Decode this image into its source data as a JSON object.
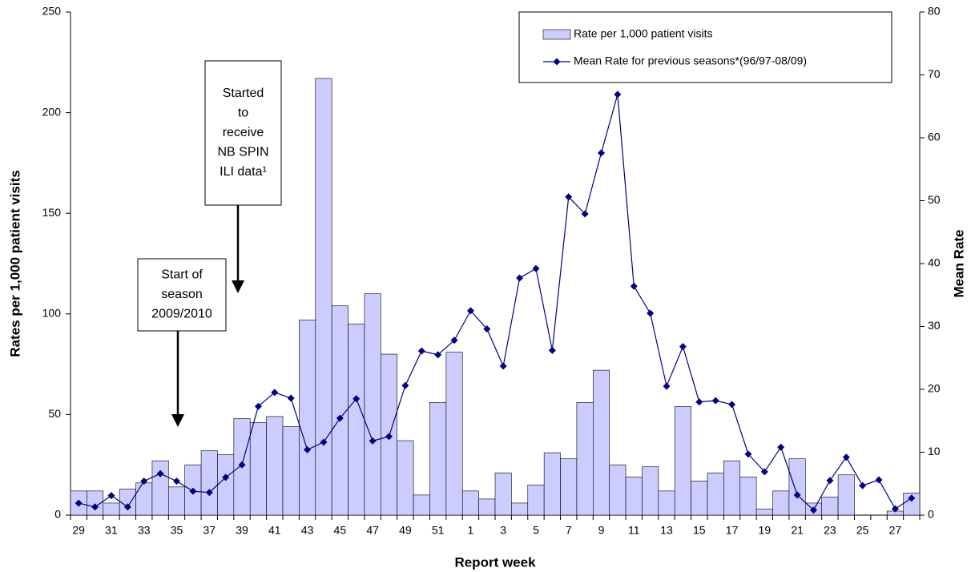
{
  "chart_data": {
    "type": "bar",
    "x_label": "Report week",
    "y_label": "Rates per 1,000 patient visits",
    "y2_label": "Mean Rate",
    "categories": [
      "29",
      null,
      "31",
      null,
      "33",
      null,
      "35",
      null,
      "37",
      null,
      "39",
      null,
      "41",
      null,
      "43",
      null,
      "45",
      null,
      "47",
      null,
      "49",
      null,
      "51",
      null,
      "1",
      null,
      "3",
      null,
      "5",
      null,
      "7",
      null,
      "9",
      null,
      "11",
      null,
      "13",
      null,
      "15",
      null,
      "17",
      null,
      "19",
      null,
      "21",
      null,
      "23",
      null,
      "25",
      null,
      "27",
      null
    ],
    "series": [
      {
        "name": "Rate per 1,000  patient visits",
        "type": "bar",
        "color": "#ccccff",
        "values": [
          12,
          12,
          6,
          13,
          16,
          27,
          14,
          25,
          32,
          30,
          48,
          46,
          49,
          44,
          97,
          217,
          104,
          95,
          110,
          80,
          37,
          10,
          56,
          81,
          12,
          8,
          21,
          6,
          15,
          31,
          28,
          56,
          72,
          25,
          19,
          24,
          12,
          54,
          17,
          21,
          27,
          19,
          3,
          12,
          28,
          6,
          9,
          20,
          0,
          0,
          2,
          11
        ]
      },
      {
        "name": "Mean Rate  for previous seasons*(96/97-08/09)",
        "type": "line",
        "axis": "y2",
        "color": "#000080",
        "values": [
          1.9,
          1.3,
          3.1,
          1.3,
          5.4,
          6.6,
          5.4,
          3.8,
          3.6,
          6.0,
          8.0,
          17.3,
          19.5,
          18.6,
          10.4,
          11.6,
          15.4,
          18.5,
          11.8,
          12.5,
          20.6,
          26.1,
          25.5,
          27.8,
          32.5,
          29.6,
          23.7,
          37.7,
          39.2,
          26.2,
          50.6,
          47.9,
          57.6,
          66.9,
          36.4,
          32.1,
          20.5,
          26.8,
          18.0,
          18.2,
          17.6,
          9.7,
          6.9,
          10.8,
          3.2,
          0.8,
          5.5,
          9.2,
          4.7,
          5.6,
          1.0,
          2.7
        ]
      }
    ],
    "ylim": [
      0,
      250
    ],
    "yticks": [
      0,
      50,
      100,
      150,
      200,
      250
    ],
    "y2lim": [
      0,
      80
    ],
    "y2ticks": [
      0,
      10,
      20,
      30,
      40,
      50,
      60,
      70,
      80
    ],
    "legend": "top-right",
    "annotations": [
      {
        "lines": [
          "Started",
          "to",
          "receive",
          "NB SPIN",
          "ILI data¹"
        ]
      },
      {
        "lines": [
          "Start of",
          "season",
          "2009/2010"
        ]
      }
    ]
  }
}
